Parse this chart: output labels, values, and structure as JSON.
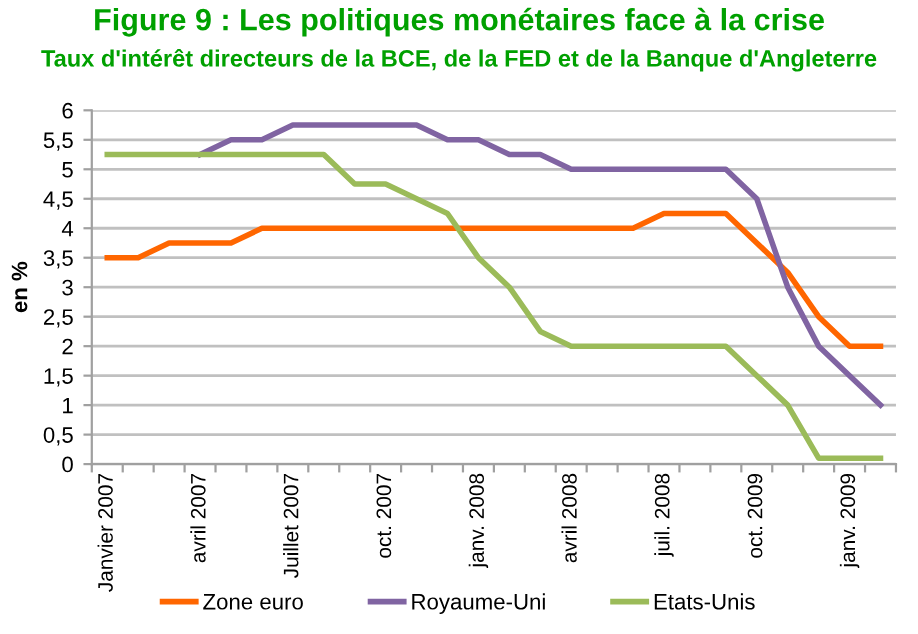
{
  "chart_data": {
    "type": "line",
    "title": "Figure 9 : Les politiques monétaires face à la crise",
    "subtitle": "Taux d'intérêt directeurs de la BCE, de la FED et de la Banque d'Angleterre",
    "ylabel": "en %",
    "categories": [
      "Janvier 2007",
      null,
      null,
      "avril 2007",
      null,
      null,
      "Juillet 2007",
      null,
      null,
      "oct. 2007",
      null,
      null,
      "janv. 2008",
      null,
      null,
      "avril 2008",
      null,
      null,
      "juil. 2008",
      null,
      null,
      "oct. 2009",
      null,
      null,
      "janv. 2009",
      null
    ],
    "series": [
      {
        "name": "Zone euro",
        "color": "#ff6600",
        "values": [
          3.5,
          3.5,
          3.75,
          3.75,
          3.75,
          4,
          4,
          4,
          4,
          4,
          4,
          4,
          4,
          4,
          4,
          4,
          4,
          4,
          4.25,
          4.25,
          4.25,
          3.75,
          3.25,
          2.5,
          2.0,
          2.0
        ]
      },
      {
        "name": "Royaume-Uni",
        "color": "#8064a2",
        "values": [
          null,
          null,
          null,
          5.25,
          5.5,
          5.5,
          5.75,
          5.75,
          5.75,
          5.75,
          5.75,
          5.5,
          5.5,
          5.25,
          5.25,
          5.0,
          5.0,
          5.0,
          5.0,
          5.0,
          5.0,
          4.5,
          3.0,
          2.0,
          1.5,
          1.0
        ]
      },
      {
        "name": "Etats-Unis",
        "color": "#9bbb59",
        "values": [
          5.25,
          5.25,
          5.25,
          5.25,
          5.25,
          5.25,
          5.25,
          5.25,
          4.75,
          4.75,
          4.5,
          4.25,
          3.5,
          3.0,
          2.25,
          2.0,
          2.0,
          2.0,
          2.0,
          2.0,
          2.0,
          1.5,
          1.0,
          0.1,
          0.1,
          0.1
        ]
      }
    ],
    "ylim": [
      0,
      6
    ],
    "yticks": [
      0,
      {
        "value": 0.5,
        "label": "0,5"
      },
      1,
      {
        "value": 1.5,
        "label": "1,5"
      },
      2,
      {
        "value": 2.5,
        "label": "2,5"
      },
      3,
      {
        "value": 3.5,
        "label": "3,5"
      },
      4,
      {
        "value": 4.5,
        "label": "4,5"
      },
      5,
      {
        "value": 5.5,
        "label": "5,5"
      },
      6
    ],
    "grid": "y",
    "legend": "bottom",
    "marker": "none",
    "line_style": "solid"
  }
}
